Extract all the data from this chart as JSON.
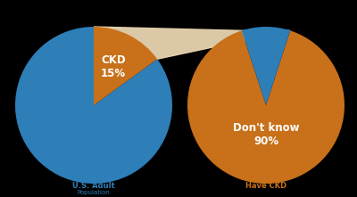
{
  "background_color": "#000000",
  "pie1": {
    "values": [
      85,
      15
    ],
    "colors": [
      "#2e7eb8",
      "#c8711a"
    ],
    "label_text": "CKD\n15%",
    "label_color": "#ffffff",
    "startangle": 90,
    "title_line1": "U.S. Adult",
    "title_line2": "Population",
    "title_color": "#2e7eb8"
  },
  "pie2": {
    "values": [
      90,
      10
    ],
    "colors": [
      "#c8711a",
      "#2e7eb8"
    ],
    "label_text": "Don't know\n90%",
    "label_color": "#ffffff",
    "startangle": 108,
    "title_line1": "Have CKD",
    "title_color": "#c8711a"
  },
  "connector_color": "#e8d4b0",
  "figsize": [
    4.0,
    2.21
  ],
  "dpi": 100
}
